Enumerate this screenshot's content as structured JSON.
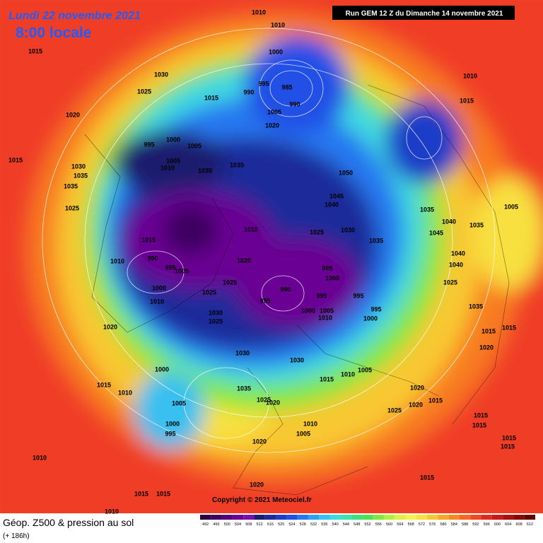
{
  "header": {
    "date": "Lundi 22 novembre 2021",
    "time": "8:00 locale",
    "run": "Run GEM 12 Z du Dimanche 14 novembre 2021"
  },
  "footer": {
    "title": "Géop. Z500 & pression au sol",
    "lead": "(+ 186h)",
    "copyright": "Copyright © 2021 Meteociel.fr"
  },
  "scale": {
    "values": [
      492,
      496,
      500,
      504,
      508,
      512,
      516,
      520,
      524,
      528,
      532,
      536,
      540,
      544,
      548,
      552,
      556,
      560,
      564,
      568,
      572,
      576,
      580,
      584,
      588,
      592,
      596,
      600,
      604,
      608,
      612
    ],
    "colors": [
      "#2a0040",
      "#3d0060",
      "#520078",
      "#6a0094",
      "#7a10a8",
      "#1a1a6e",
      "#1c2a9a",
      "#1e3cc8",
      "#2050e6",
      "#2878f0",
      "#30a0f0",
      "#38c0f0",
      "#40d8e0",
      "#40e0b0",
      "#40e080",
      "#50e050",
      "#80e840",
      "#b0f040",
      "#e0f040",
      "#f8f050",
      "#f8e040",
      "#f8c830",
      "#f8a828",
      "#f88820",
      "#f86820",
      "#f04820",
      "#e02820",
      "#c81818",
      "#a81010",
      "#880808",
      "#600404"
    ]
  },
  "isobars": [
    1010,
    1010,
    1015,
    1000,
    1030,
    995,
    985,
    990,
    1025,
    1015,
    990,
    1010,
    1015,
    1005,
    1020,
    1020,
    995,
    1000,
    1005,
    1015,
    1030,
    1035,
    1035,
    1005,
    1010,
    1035,
    1035,
    1050,
    1045,
    1040,
    1025,
    1005,
    1035,
    1040,
    1035,
    1015,
    1025,
    1030,
    1045,
    1035,
    1015,
    990,
    1020,
    1010,
    995,
    1005,
    995,
    1000,
    1040,
    1040,
    1000,
    1025,
    1025,
    990,
    995,
    995,
    995,
    1010,
    1000,
    1005,
    1010,
    995,
    1000,
    1030,
    1025,
    1025,
    1035,
    1020,
    1015,
    1015,
    1020,
    1030,
    1030,
    1010,
    1005,
    1015,
    1000,
    1015,
    1010,
    1035,
    1020,
    1025,
    1020,
    1020,
    1015,
    1005,
    1025,
    1010,
    1005,
    1000,
    995,
    1015,
    1015,
    1015,
    1015,
    1020,
    1010,
    1020,
    1015,
    1015,
    1015,
    1010
  ]
}
